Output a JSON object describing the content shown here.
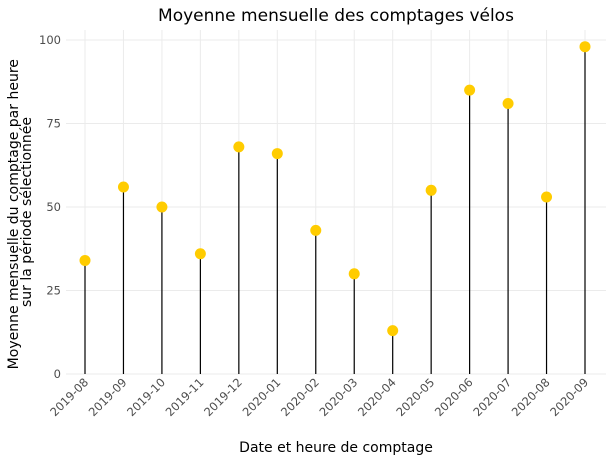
{
  "chart_data": {
    "type": "lollipop",
    "title": "Moyenne mensuelle des comptages vélos",
    "xlabel": "Date et heure de comptage",
    "ylabel_lines": [
      "Moyenne mensuelle du comptage par heure",
      "sur la période sélectionnée"
    ],
    "ylim": [
      0,
      103
    ],
    "yticks": [
      0,
      25,
      50,
      75,
      100
    ],
    "categories": [
      "2019-08",
      "2019-09",
      "2019-10",
      "2019-11",
      "2019-12",
      "2020-01",
      "2020-02",
      "2020-03",
      "2020-04",
      "2020-05",
      "2020-06",
      "2020-07",
      "2020-08",
      "2020-09"
    ],
    "values": [
      34,
      56,
      50,
      36,
      68,
      66,
      43,
      30,
      13,
      55,
      85,
      81,
      53,
      98
    ],
    "grid": true,
    "point_color": "#ffcc00",
    "stem_color": "#000000",
    "grid_color": "#ebebeb"
  }
}
